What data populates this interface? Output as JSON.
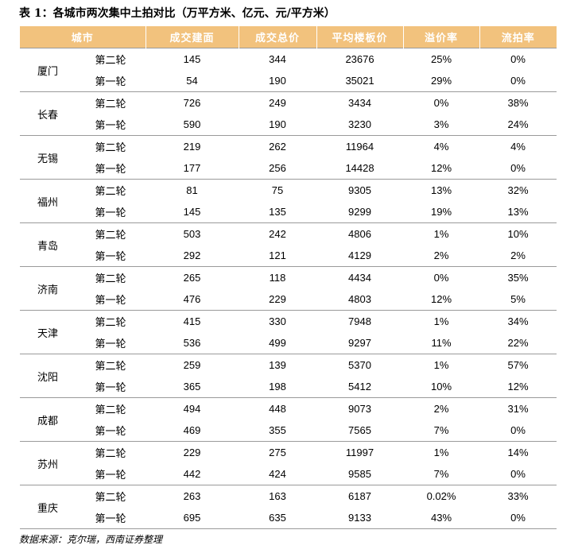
{
  "caption": "表 1：各城市两次集中土拍对比（万平方米、亿元、元/平方米）",
  "table": {
    "headers": {
      "city": "城市",
      "area": "成交建面",
      "total": "成交总价",
      "avg_price": "平均楼板价",
      "premium": "溢价率",
      "unsold": "流拍率"
    },
    "groups": [
      {
        "city": "厦门",
        "rows": [
          {
            "round": "第二轮",
            "area": "145",
            "total": "344",
            "avg_price": "23676",
            "premium": "25%",
            "unsold": "0%"
          },
          {
            "round": "第一轮",
            "area": "54",
            "total": "190",
            "avg_price": "35021",
            "premium": "29%",
            "unsold": "0%"
          }
        ]
      },
      {
        "city": "长春",
        "rows": [
          {
            "round": "第二轮",
            "area": "726",
            "total": "249",
            "avg_price": "3434",
            "premium": "0%",
            "unsold": "38%"
          },
          {
            "round": "第一轮",
            "area": "590",
            "total": "190",
            "avg_price": "3230",
            "premium": "3%",
            "unsold": "24%"
          }
        ]
      },
      {
        "city": "无锡",
        "rows": [
          {
            "round": "第二轮",
            "area": "219",
            "total": "262",
            "avg_price": "11964",
            "premium": "4%",
            "unsold": "4%"
          },
          {
            "round": "第一轮",
            "area": "177",
            "total": "256",
            "avg_price": "14428",
            "premium": "12%",
            "unsold": "0%"
          }
        ]
      },
      {
        "city": "福州",
        "rows": [
          {
            "round": "第二轮",
            "area": "81",
            "total": "75",
            "avg_price": "9305",
            "premium": "13%",
            "unsold": "32%"
          },
          {
            "round": "第一轮",
            "area": "145",
            "total": "135",
            "avg_price": "9299",
            "premium": "19%",
            "unsold": "13%"
          }
        ]
      },
      {
        "city": "青岛",
        "rows": [
          {
            "round": "第二轮",
            "area": "503",
            "total": "242",
            "avg_price": "4806",
            "premium": "1%",
            "unsold": "10%"
          },
          {
            "round": "第一轮",
            "area": "292",
            "total": "121",
            "avg_price": "4129",
            "premium": "2%",
            "unsold": "2%"
          }
        ]
      },
      {
        "city": "济南",
        "rows": [
          {
            "round": "第二轮",
            "area": "265",
            "total": "118",
            "avg_price": "4434",
            "premium": "0%",
            "unsold": "35%"
          },
          {
            "round": "第一轮",
            "area": "476",
            "total": "229",
            "avg_price": "4803",
            "premium": "12%",
            "unsold": "5%"
          }
        ]
      },
      {
        "city": "天津",
        "rows": [
          {
            "round": "第二轮",
            "area": "415",
            "total": "330",
            "avg_price": "7948",
            "premium": "1%",
            "unsold": "34%"
          },
          {
            "round": "第一轮",
            "area": "536",
            "total": "499",
            "avg_price": "9297",
            "premium": "11%",
            "unsold": "22%"
          }
        ]
      },
      {
        "city": "沈阳",
        "rows": [
          {
            "round": "第二轮",
            "area": "259",
            "total": "139",
            "avg_price": "5370",
            "premium": "1%",
            "unsold": "57%"
          },
          {
            "round": "第一轮",
            "area": "365",
            "total": "198",
            "avg_price": "5412",
            "premium": "10%",
            "unsold": "12%"
          }
        ]
      },
      {
        "city": "成都",
        "rows": [
          {
            "round": "第二轮",
            "area": "494",
            "total": "448",
            "avg_price": "9073",
            "premium": "2%",
            "unsold": "31%"
          },
          {
            "round": "第一轮",
            "area": "469",
            "total": "355",
            "avg_price": "7565",
            "premium": "7%",
            "unsold": "0%"
          }
        ]
      },
      {
        "city": "苏州",
        "rows": [
          {
            "round": "第二轮",
            "area": "229",
            "total": "275",
            "avg_price": "11997",
            "premium": "1%",
            "unsold": "14%"
          },
          {
            "round": "第一轮",
            "area": "442",
            "total": "424",
            "avg_price": "9585",
            "premium": "7%",
            "unsold": "0%"
          }
        ]
      },
      {
        "city": "重庆",
        "rows": [
          {
            "round": "第二轮",
            "area": "263",
            "total": "163",
            "avg_price": "6187",
            "premium": "0.02%",
            "unsold": "33%"
          },
          {
            "round": "第一轮",
            "area": "695",
            "total": "635",
            "avg_price": "9133",
            "premium": "43%",
            "unsold": "0%"
          }
        ]
      }
    ]
  },
  "source": "数据来源：克尔瑞，西南证券整理",
  "colors": {
    "header_bg": "#f2c27d",
    "header_text": "#ffffff",
    "rule": "#9a9a9a"
  }
}
